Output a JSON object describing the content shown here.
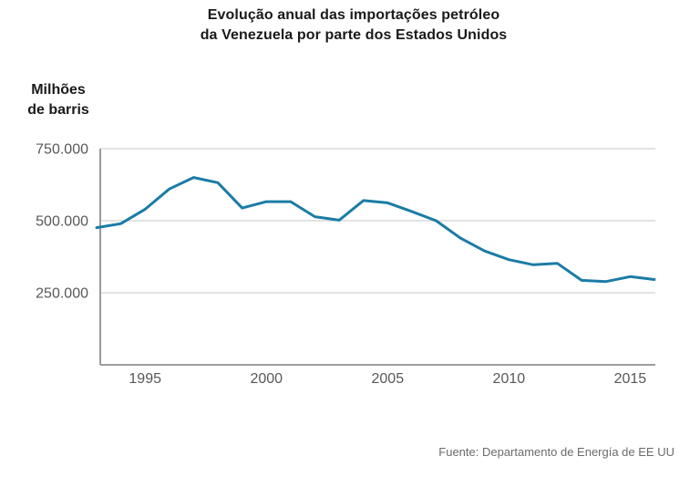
{
  "title": {
    "line1": "Evolução anual das importações petróleo",
    "line2": "da Venezuela por parte dos Estados Unidos"
  },
  "y_axis_unit_label": {
    "line1": "Milhões",
    "line2": "de barris"
  },
  "source_credit": "Fuente: Departamento de Energía de EE UU",
  "colors": {
    "line": "#1b7ca6",
    "grid": "#d2d2d2",
    "axis": "#8f8f8f",
    "tick_text": "#58585a",
    "title_text": "#1a1a1a",
    "source_text": "#6b6b6b",
    "background": "#ffffff"
  },
  "chart_data": {
    "type": "line",
    "title": "Evolução anual das importações petróleo da Venezuela por parte dos Estados Unidos",
    "ylabel": "Milhões de barris",
    "xlabel": "",
    "grid": "horizontal",
    "legend": "none",
    "x": [
      1993,
      1994,
      1995,
      1996,
      1997,
      1998,
      1999,
      2000,
      2001,
      2002,
      2003,
      2004,
      2005,
      2006,
      2007,
      2008,
      2009,
      2010,
      2011,
      2012,
      2013,
      2014,
      2015,
      2016
    ],
    "values": [
      476000,
      490000,
      540000,
      610000,
      650000,
      632000,
      544000,
      566000,
      566000,
      514000,
      502000,
      570000,
      562000,
      532000,
      500000,
      440000,
      395000,
      365000,
      347000,
      352000,
      293000,
      289000,
      306000,
      296000
    ],
    "xlim": [
      1993,
      2016
    ],
    "ylim": [
      0,
      750000
    ],
    "x_ticks": {
      "values": [
        1995,
        2000,
        2005,
        2010,
        2015
      ],
      "labels": [
        "1995",
        "2000",
        "2005",
        "2010",
        "2015"
      ]
    },
    "y_ticks": {
      "values": [
        750000,
        500000,
        250000
      ],
      "labels": [
        "750.000",
        "500.000",
        "250.000"
      ]
    }
  }
}
